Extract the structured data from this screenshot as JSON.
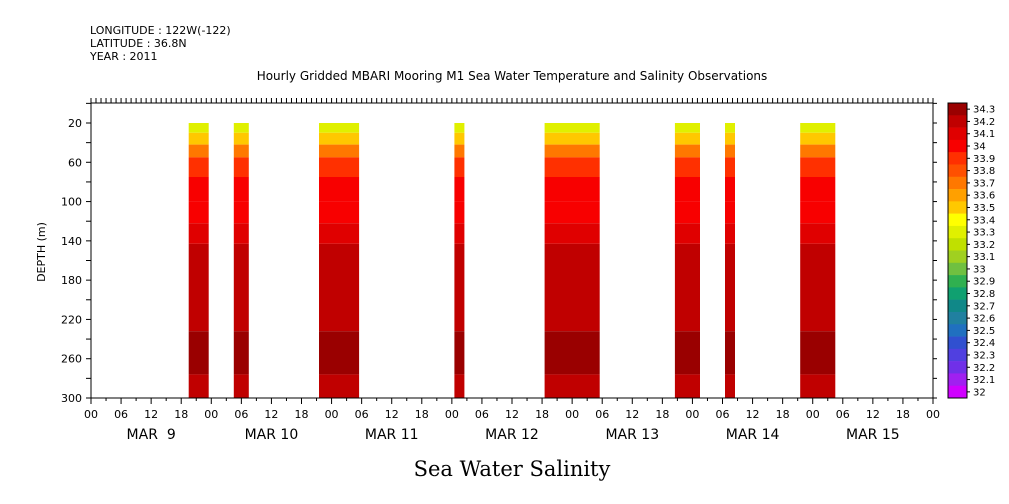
{
  "header": {
    "longitude": "LONGITUDE : 122W(-122)",
    "latitude": "LATITUDE : 36.8N",
    "year": "YEAR : 2011"
  },
  "chart_data": {
    "type": "heatmap",
    "title": "Hourly Gridded MBARI Mooring M1 Sea Water Temperature and Salinity Observations",
    "caption": "Sea Water Salinity",
    "ylabel": "DEPTH (m)",
    "y_inverted": true,
    "ylim": [
      300,
      0
    ],
    "y_ticks": [
      20,
      60,
      100,
      140,
      180,
      220,
      260,
      300
    ],
    "xlim_hours": [
      0,
      168
    ],
    "x_tick_labels": [
      "00",
      "06",
      "12",
      "18",
      "00",
      "06",
      "12",
      "18",
      "00",
      "06",
      "12",
      "18",
      "00",
      "06",
      "12",
      "18",
      "00",
      "06",
      "12",
      "18",
      "00",
      "06",
      "12",
      "18",
      "00",
      "06",
      "12",
      "18",
      "00"
    ],
    "day_labels": [
      "MAR  9",
      "MAR 10",
      "MAR 11",
      "MAR 12",
      "MAR 13",
      "MAR 14",
      "MAR 15"
    ],
    "colorbar": {
      "levels": [
        "34.3",
        "34.2",
        "34.1",
        "34",
        "33.9",
        "33.8",
        "33.7",
        "33.6",
        "33.5",
        "33.4",
        "33.3",
        "33.2",
        "33.1",
        "33",
        "32.9",
        "32.8",
        "32.7",
        "32.6",
        "32.5",
        "32.4",
        "32.3",
        "32.2",
        "32.1",
        "32"
      ],
      "colors": [
        "#9a0000",
        "#c00000",
        "#e00000",
        "#f80000",
        "#ff3000",
        "#ff5000",
        "#ff7800",
        "#ffa000",
        "#ffc800",
        "#ffff00",
        "#e0f000",
        "#c0e000",
        "#a0d020",
        "#70c040",
        "#30b050",
        "#10a070",
        "#108888",
        "#2080a0",
        "#2070c0",
        "#3050d0",
        "#5040e0",
        "#7030e8",
        "#a020f0",
        "#d000ff"
      ]
    },
    "observation_windows_hours": [
      [
        19.5,
        23.5
      ],
      [
        28.5,
        31.5
      ],
      [
        45.5,
        53.5
      ],
      [
        72.5,
        74.5
      ],
      [
        90.5,
        101.5
      ],
      [
        116.5,
        121.5
      ],
      [
        126.5,
        128.5
      ],
      [
        141.5,
        148.5
      ]
    ],
    "depth_layers": [
      {
        "from": 20,
        "to": 30,
        "value": 33.3
      },
      {
        "from": 30,
        "to": 42,
        "value": 33.5
      },
      {
        "from": 42,
        "to": 55,
        "value": 33.7
      },
      {
        "from": 55,
        "to": 75,
        "value": 33.9
      },
      {
        "from": 75,
        "to": 100,
        "value": 34.0
      },
      {
        "from": 100,
        "to": 122,
        "value": 34.05
      },
      {
        "from": 122,
        "to": 143,
        "value": 34.1
      },
      {
        "from": 143,
        "to": 232,
        "value": 34.2
      },
      {
        "from": 232,
        "to": 276,
        "value": 34.3
      },
      {
        "from": 276,
        "to": 300,
        "value": 34.2
      }
    ]
  }
}
